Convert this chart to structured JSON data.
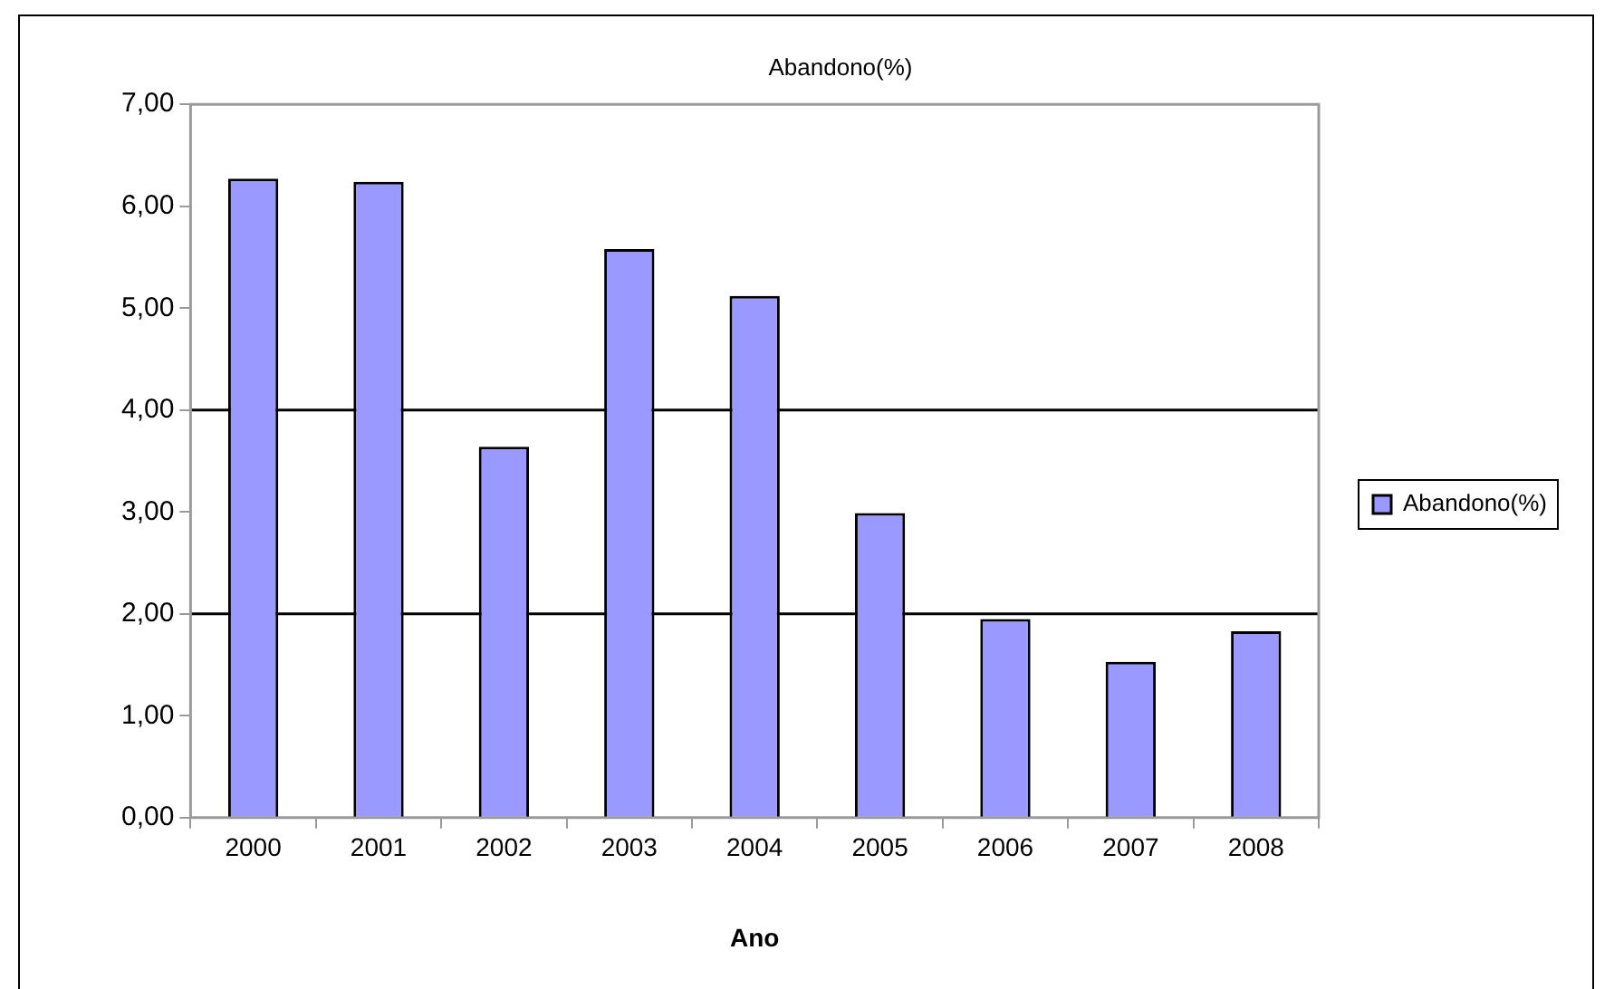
{
  "chart_data": {
    "type": "bar",
    "title": "Abandono(%)",
    "xlabel": "Ano",
    "categories": [
      "2000",
      "2001",
      "2002",
      "2003",
      "2004",
      "2005",
      "2006",
      "2007",
      "2008"
    ],
    "series": [
      {
        "name": "Abandono(%)",
        "color": "#9999ff",
        "values": [
          6.27,
          6.24,
          3.64,
          5.58,
          5.12,
          2.99,
          1.95,
          1.53,
          1.83
        ]
      }
    ],
    "ylim": [
      0,
      7
    ],
    "yticks": [
      {
        "value": 0,
        "label": "0,00"
      },
      {
        "value": 1,
        "label": "1,00"
      },
      {
        "value": 2,
        "label": "2,00"
      },
      {
        "value": 3,
        "label": "3,00"
      },
      {
        "value": 4,
        "label": "4,00"
      },
      {
        "value": 5,
        "label": "5,00"
      },
      {
        "value": 6,
        "label": "6,00"
      },
      {
        "value": 7,
        "label": "7,00"
      }
    ],
    "ref_lines": [
      {
        "axis": "y",
        "value": 2,
        "color": "#000000"
      },
      {
        "axis": "y",
        "value": 4,
        "color": "#000000"
      }
    ],
    "grid": false,
    "legend": "right"
  }
}
